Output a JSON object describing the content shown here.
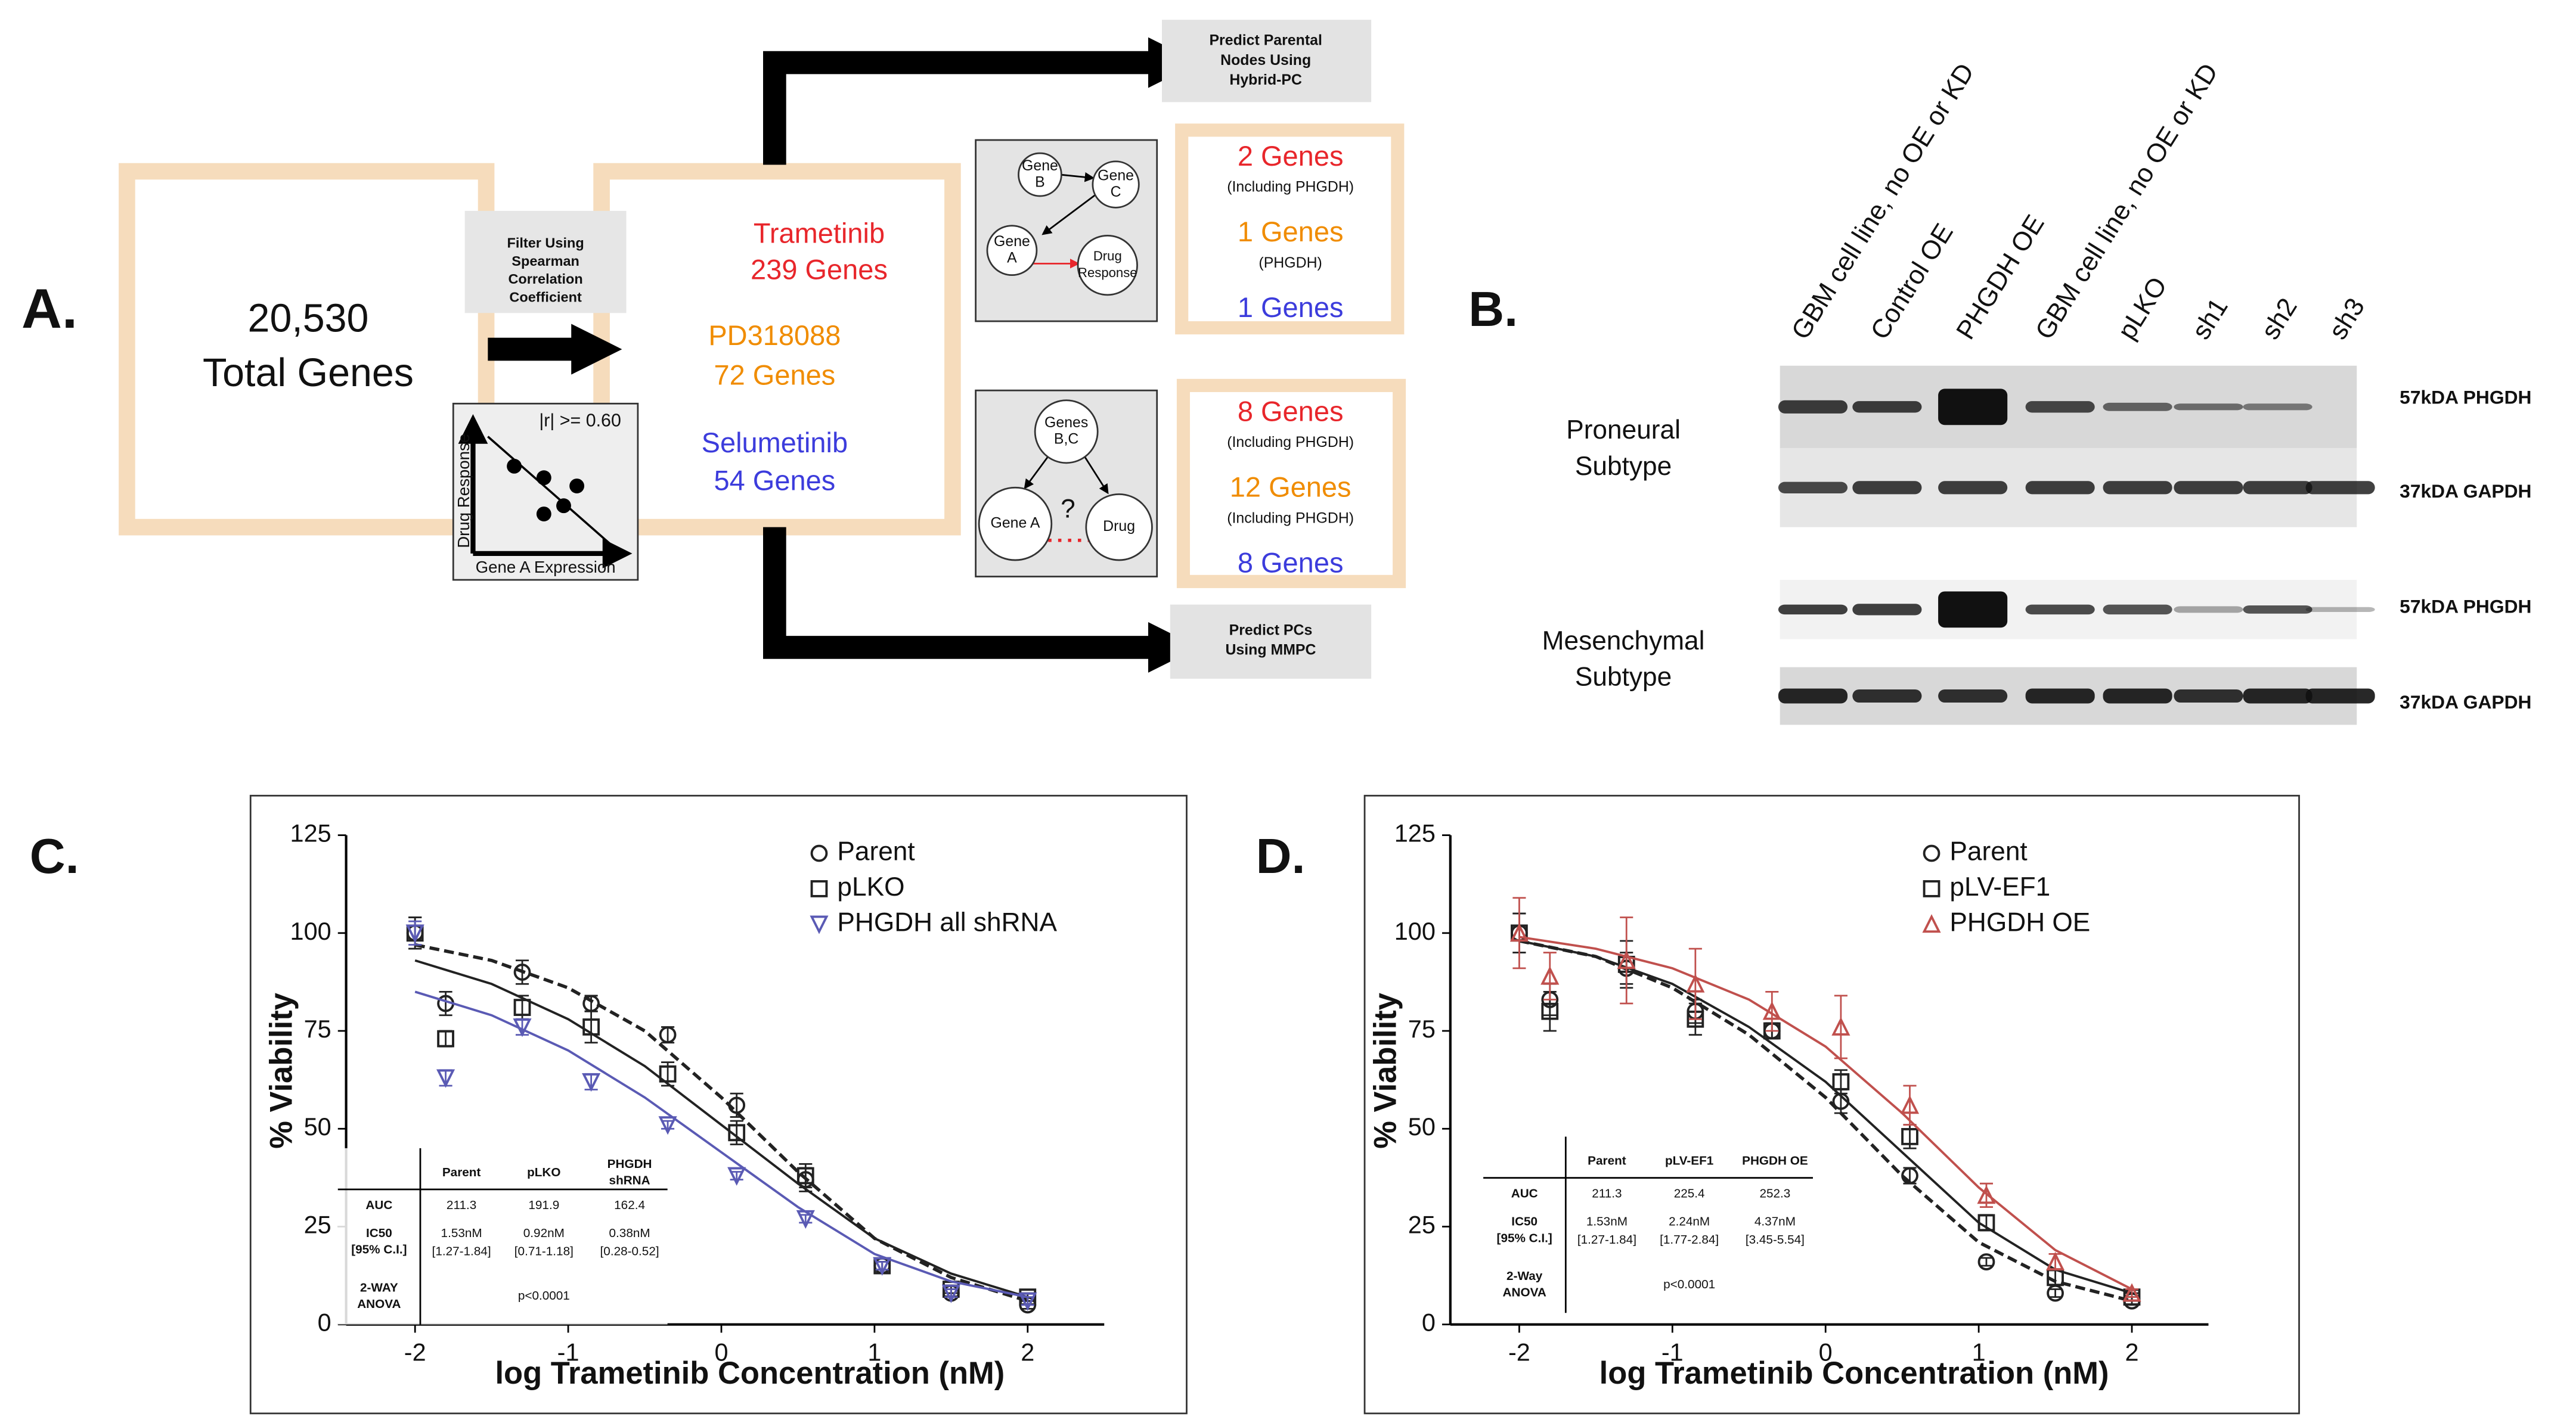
{
  "panel_a": {
    "label": "A.",
    "total": {
      "count": "20,530",
      "text": "Total Genes"
    },
    "filter": [
      "Filter Using",
      "Spearman",
      "Correlation",
      "Coefficient"
    ],
    "inset": {
      "threshold": "|r| >= 0.60",
      "y_label": "Drug Response",
      "x_label": "Gene A Expression"
    },
    "drugs": [
      {
        "name": "Trametinib",
        "genes": "239 Genes",
        "color": "#e8262b"
      },
      {
        "name": "PD318088",
        "genes": "72 Genes",
        "color": "#f08c00"
      },
      {
        "name": "Selumetinib",
        "genes": "54 Genes",
        "color": "#3c3cdc"
      }
    ],
    "top_method": [
      "Predict Parental",
      "Nodes Using",
      "Hybrid-PC"
    ],
    "bottom_method": [
      "Predict PCs",
      "Using MMPC"
    ],
    "diagram_1": [
      {
        "label": [
          "Gene",
          "B"
        ]
      },
      {
        "label": [
          "Gene",
          "C"
        ]
      },
      {
        "label": [
          "Gene",
          "A"
        ]
      },
      {
        "label": [
          "Drug",
          "Response"
        ]
      }
    ],
    "diagram_2": {
      "nodes": [
        {
          "label": [
            "Genes",
            "B,C"
          ]
        },
        {
          "label": [
            "Gene A"
          ]
        },
        {
          "label": [
            "Drug"
          ]
        }
      ],
      "unknown": "?"
    },
    "results_1": [
      {
        "genes": "2 Genes",
        "note": "(Including PHGDH)",
        "color": "#e8262b"
      },
      {
        "genes": "1 Genes",
        "note": "(PHGDH)",
        "color": "#f08c00"
      },
      {
        "genes": "1 Genes",
        "color": "#3c3cdc"
      }
    ],
    "results_2": [
      {
        "genes": "8 Genes",
        "note": "(Including PHGDH)",
        "color": "#e8262b"
      },
      {
        "genes": "12 Genes",
        "note": "(Including PHGDH)",
        "color": "#f08c00"
      },
      {
        "genes": "8 Genes",
        "color": "#3c3cdc"
      }
    ]
  },
  "panel_b": {
    "label": "B.",
    "lanes": [
      "GBM cell line, no OE or KD",
      "Control OE",
      "PHGDH OE",
      "GBM cell line, no OE or KD",
      "pLKO",
      "sh1",
      "sh2",
      "sh3"
    ],
    "subtypes": [
      [
        "Proneural",
        "Subtype"
      ],
      [
        "Mesenchymal",
        "Subtype"
      ]
    ],
    "bands": [
      "57kDA  PHGDH",
      "37kDA  GAPDH",
      "57kDA  PHGDH",
      "37kDA  GAPDH"
    ]
  },
  "chart_data": [
    {
      "type": "scatter",
      "label": "C.",
      "x_label": "log Trametinib Concentration (nM)",
      "y_label": "% Viability",
      "xlim": [
        -2.45,
        2.5
      ],
      "ylim": [
        0,
        125
      ],
      "xticks": [
        -2,
        -1,
        0,
        1,
        2
      ],
      "yticks": [
        0,
        25,
        50,
        75,
        100,
        125
      ],
      "x": [
        -2,
        -1.8,
        -1.3,
        -0.85,
        -0.35,
        0.1,
        0.55,
        1.05,
        1.5,
        2
      ],
      "fit_x": [
        -2,
        -1.5,
        -1,
        -0.5,
        0,
        0.5,
        1,
        1.5,
        2
      ],
      "series": [
        {
          "name": "Parent",
          "color": "#222222",
          "marker": "circle",
          "line_style": "dashed",
          "values": [
            100,
            82,
            90,
            82,
            74,
            56,
            37,
            15,
            8,
            5
          ],
          "errors": [
            4,
            3,
            3,
            2,
            2,
            3,
            3,
            1,
            1,
            1
          ],
          "fit": [
            97,
            93,
            86,
            75,
            58,
            39,
            22,
            12,
            6
          ]
        },
        {
          "name": "pLKO",
          "color": "#222222",
          "marker": "square",
          "line_style": "solid",
          "values": [
            100,
            73,
            81,
            76,
            64,
            49,
            38,
            15,
            9,
            7
          ],
          "errors": [
            4,
            2,
            3,
            4,
            3,
            3,
            3,
            1,
            1,
            1
          ],
          "fit": [
            93,
            87,
            78,
            66,
            51,
            36,
            22,
            13,
            7
          ]
        },
        {
          "name": "PHGDH all shRNA",
          "color": "#5a5ab4",
          "marker": "triangle-down",
          "line_style": "solid",
          "values": [
            100,
            63,
            76,
            62,
            51,
            38,
            27,
            15,
            8,
            6
          ],
          "errors": [
            3,
            2,
            2,
            2,
            1,
            1,
            1,
            1,
            1,
            1
          ],
          "fit": [
            85,
            79,
            70,
            58,
            44,
            30,
            18,
            11,
            7
          ]
        }
      ],
      "table": {
        "columns": [
          [
            "Parent"
          ],
          [
            "pLKO"
          ],
          [
            "PHGDH",
            "shRNA"
          ]
        ],
        "rows": [
          {
            "label": [
              "AUC"
            ],
            "cells": [
              [
                "211.3"
              ],
              [
                "191.9"
              ],
              [
                "162.4"
              ]
            ]
          },
          {
            "label": [
              "IC50",
              "[95% C.I.]"
            ],
            "cells": [
              [
                "1.53nM",
                "[1.27-1.84]"
              ],
              [
                "0.92nM",
                "[0.71-1.18]"
              ],
              [
                "0.38nM",
                "[0.28-0.52]"
              ]
            ]
          },
          {
            "label": [
              "2-WAY",
              "ANOVA"
            ],
            "cells": [
              [
                "p<0.0001"
              ]
            ]
          }
        ]
      }
    },
    {
      "type": "scatter",
      "label": "D.",
      "x_label": "log Trametinib Concentration (nM)",
      "y_label": "% Viability",
      "xlim": [
        -2.45,
        2.5
      ],
      "ylim": [
        0,
        125
      ],
      "xticks": [
        -2,
        -1,
        0,
        1,
        2
      ],
      "yticks": [
        0,
        25,
        50,
        75,
        100,
        125
      ],
      "x": [
        -2,
        -1.8,
        -1.3,
        -0.85,
        -0.35,
        0.1,
        0.55,
        1.05,
        1.5,
        2
      ],
      "fit_x": [
        -2,
        -1.5,
        -1,
        -0.5,
        0,
        0.5,
        1,
        1.5,
        2
      ],
      "series": [
        {
          "name": "Parent",
          "color": "#222222",
          "marker": "circle",
          "line_style": "dashed",
          "values": [
            100,
            83,
            91,
            80,
            75,
            57,
            38,
            16,
            8,
            6
          ],
          "errors": [
            5,
            4,
            4,
            3,
            2,
            3,
            2,
            1,
            1,
            1
          ],
          "fit": [
            98,
            94,
            86,
            74,
            58,
            38,
            21,
            11,
            6
          ]
        },
        {
          "name": "pLV-EF1",
          "color": "#222222",
          "marker": "square",
          "line_style": "solid",
          "values": [
            100,
            80,
            92,
            78,
            75,
            62,
            48,
            26,
            12,
            7
          ],
          "errors": [
            5,
            5,
            6,
            4,
            2,
            3,
            3,
            2,
            2,
            1
          ],
          "fit": [
            98,
            94,
            87,
            76,
            62,
            44,
            26,
            14,
            8
          ]
        },
        {
          "name": "PHGDH OE",
          "color": "#c0504d",
          "marker": "triangle-up",
          "line_style": "solid",
          "values": [
            100,
            89,
            93,
            87,
            80,
            76,
            56,
            33,
            16,
            8
          ],
          "errors": [
            9,
            6,
            11,
            9,
            5,
            8,
            5,
            3,
            2,
            1
          ],
          "fit": [
            99,
            96,
            91,
            83,
            71,
            54,
            35,
            19,
            9
          ]
        }
      ],
      "table": {
        "columns": [
          [
            "Parent"
          ],
          [
            "pLV-EF1"
          ],
          [
            "PHGDH OE"
          ]
        ],
        "rows": [
          {
            "label": [
              "AUC"
            ],
            "cells": [
              [
                "211.3"
              ],
              [
                "225.4"
              ],
              [
                "252.3"
              ]
            ]
          },
          {
            "label": [
              "IC50",
              "[95% C.I.]"
            ],
            "cells": [
              [
                "1.53nM",
                "[1.27-1.84]"
              ],
              [
                "2.24nM",
                "[1.77-2.84]"
              ],
              [
                "4.37nM",
                "[3.45-5.54]"
              ]
            ]
          },
          {
            "label": [
              "2-Way",
              "ANOVA"
            ],
            "cells": [
              [
                "p<0.0001"
              ]
            ]
          }
        ]
      }
    }
  ]
}
